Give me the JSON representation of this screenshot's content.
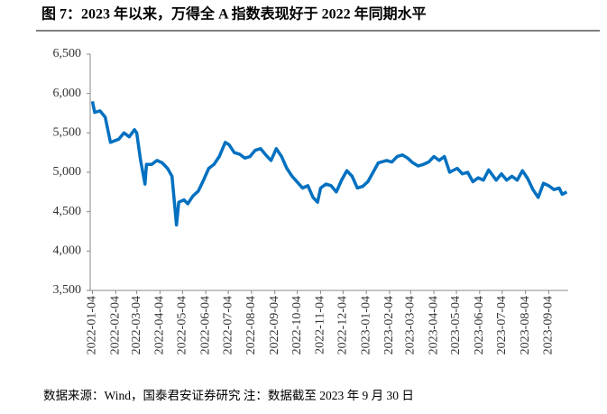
{
  "chart_data": {
    "type": "line",
    "title": "图 7：2023 年以来，万得全 A 指数表现好于 2022 年同期水平",
    "source": "数据来源：Wind，国泰君安证券研究 注：数据截至 2023 年 9 月 30 日",
    "xlim": [
      "2022-01-01",
      "2023-09-30"
    ],
    "xticks": [
      "2022-01-04",
      "2022-02-04",
      "2022-03-04",
      "2022-04-04",
      "2022-05-04",
      "2022-06-04",
      "2022-07-04",
      "2022-08-04",
      "2022-09-04",
      "2022-10-04",
      "2022-11-04",
      "2022-12-04",
      "2023-01-04",
      "2023-02-04",
      "2023-03-04",
      "2023-04-04",
      "2023-05-04",
      "2023-06-04",
      "2023-07-04",
      "2023-08-04",
      "2023-09-04"
    ],
    "ylim": [
      3500,
      6500
    ],
    "yticks": [
      {
        "value": 3500,
        "label": "3,500"
      },
      {
        "value": 4000,
        "label": "4,000"
      },
      {
        "value": 4500,
        "label": "4,500"
      },
      {
        "value": 5000,
        "label": "5,000"
      },
      {
        "value": 5500,
        "label": "5,500"
      },
      {
        "value": 6000,
        "label": "6,000"
      },
      {
        "value": 6500,
        "label": "6,500"
      }
    ],
    "grid": false,
    "x": [
      "2022-01-04",
      "2022-01-07",
      "2022-01-14",
      "2022-01-21",
      "2022-01-28",
      "2022-02-08",
      "2022-02-15",
      "2022-02-22",
      "2022-03-01",
      "2022-03-04",
      "2022-03-09",
      "2022-03-15",
      "2022-03-17",
      "2022-03-24",
      "2022-03-31",
      "2022-04-07",
      "2022-04-14",
      "2022-04-20",
      "2022-04-26",
      "2022-04-29",
      "2022-05-06",
      "2022-05-11",
      "2022-05-18",
      "2022-05-25",
      "2022-06-01",
      "2022-06-08",
      "2022-06-15",
      "2022-06-22",
      "2022-06-30",
      "2022-07-05",
      "2022-07-12",
      "2022-07-19",
      "2022-07-26",
      "2022-08-02",
      "2022-08-09",
      "2022-08-16",
      "2022-08-23",
      "2022-08-30",
      "2022-09-06",
      "2022-09-13",
      "2022-09-20",
      "2022-09-27",
      "2022-10-11",
      "2022-10-18",
      "2022-10-25",
      "2022-10-31",
      "2022-11-04",
      "2022-11-11",
      "2022-11-18",
      "2022-11-25",
      "2022-12-02",
      "2022-12-09",
      "2022-12-16",
      "2022-12-23",
      "2022-12-30",
      "2023-01-06",
      "2023-01-13",
      "2023-01-20",
      "2023-01-31",
      "2023-02-07",
      "2023-02-14",
      "2023-02-21",
      "2023-02-28",
      "2023-03-07",
      "2023-03-14",
      "2023-03-21",
      "2023-03-28",
      "2023-04-04",
      "2023-04-11",
      "2023-04-18",
      "2023-04-25",
      "2023-05-05",
      "2023-05-12",
      "2023-05-19",
      "2023-05-26",
      "2023-06-02",
      "2023-06-09",
      "2023-06-16",
      "2023-06-26",
      "2023-07-03",
      "2023-07-10",
      "2023-07-17",
      "2023-07-24",
      "2023-07-31",
      "2023-08-07",
      "2023-08-14",
      "2023-08-21",
      "2023-08-28",
      "2023-09-04",
      "2023-09-11",
      "2023-09-18",
      "2023-09-22",
      "2023-09-28"
    ],
    "series": [
      {
        "color": "#0070c0",
        "values": [
          5900,
          5760,
          5780,
          5700,
          5380,
          5420,
          5500,
          5450,
          5540,
          5500,
          5160,
          4850,
          5100,
          5100,
          5150,
          5120,
          5050,
          4950,
          4330,
          4620,
          4650,
          4600,
          4700,
          4760,
          4900,
          5050,
          5100,
          5200,
          5380,
          5350,
          5250,
          5230,
          5180,
          5200,
          5280,
          5300,
          5220,
          5150,
          5300,
          5200,
          5050,
          4950,
          4800,
          4830,
          4680,
          4620,
          4800,
          4850,
          4830,
          4750,
          4900,
          5020,
          4950,
          4800,
          4820,
          4880,
          5000,
          5120,
          5150,
          5130,
          5200,
          5220,
          5180,
          5120,
          5080,
          5100,
          5130,
          5200,
          5150,
          5200,
          5000,
          5050,
          4980,
          5000,
          4880,
          4930,
          4900,
          5030,
          4900,
          4980,
          4900,
          4950,
          4900,
          5020,
          4920,
          4780,
          4680,
          4860,
          4830,
          4780,
          4800,
          4720,
          4750
        ]
      }
    ]
  }
}
